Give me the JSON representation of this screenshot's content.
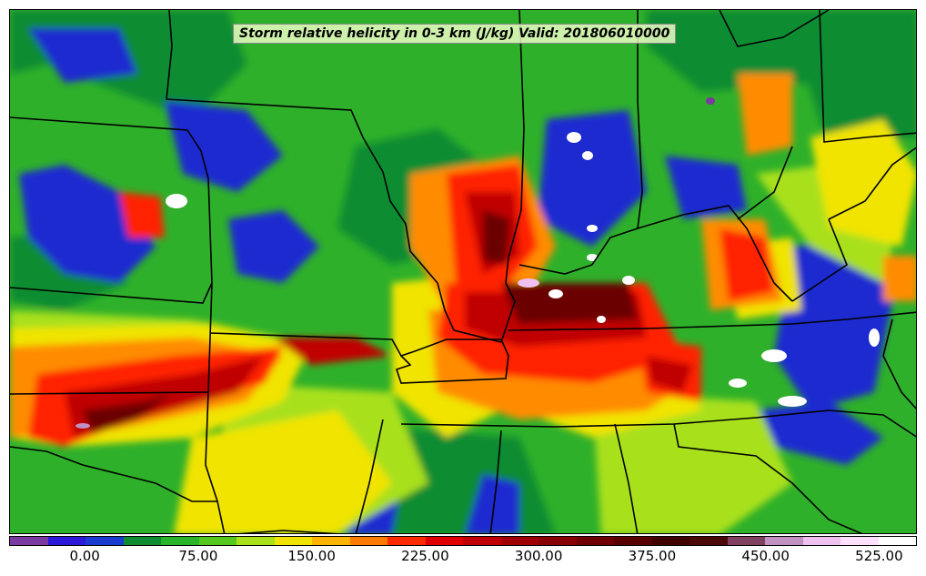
{
  "title": "Storm relative helicity in 0-3 km (J/kg) Valid: 201806010000",
  "colorbar": {
    "colors": [
      "#7a3aa0",
      "#2b18d8",
      "#1a3ad0",
      "#0f8c30",
      "#2ab42a",
      "#55c81e",
      "#a8e01a",
      "#f0e400",
      "#ffb400",
      "#ff7a00",
      "#ff2a00",
      "#e00000",
      "#c00000",
      "#a00000",
      "#880000",
      "#700000",
      "#580000",
      "#400000",
      "#4a0808",
      "#804060",
      "#c090c0",
      "#f0c0f0",
      "#ffe0ff",
      "#ffffff"
    ],
    "tick_labels": [
      "0.00",
      "75.00",
      "150.00",
      "225.00",
      "300.00",
      "375.00",
      "450.00",
      "525.00"
    ],
    "tick_values": [
      0,
      75,
      150,
      225,
      300,
      375,
      450,
      525
    ],
    "range": [
      -50,
      550
    ]
  },
  "map": {
    "field_colors": {
      "low_purple": "#7a3aa0",
      "blue": "#1a2ad0",
      "dark_green": "#0f8c30",
      "green": "#3cbf2a",
      "yellow_green": "#a8e01a",
      "yellow": "#f0e400",
      "orange": "#ff8c00",
      "red": "#ff2000",
      "dark_red": "#c00000",
      "maroon": "#6a0000",
      "white": "#ffffff"
    }
  }
}
